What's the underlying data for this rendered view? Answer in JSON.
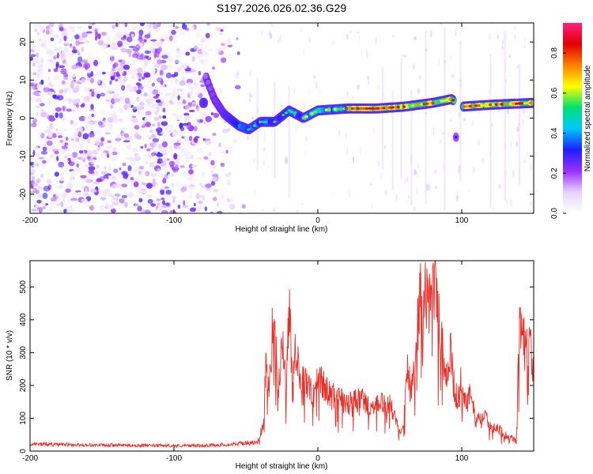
{
  "page_title": "S197.2026.026.02.36.G29",
  "chart_data": [
    {
      "type": "heatmap",
      "title": "S197.2026.026.02.36.G29",
      "xlabel": "Height of straight line (km)",
      "ylabel": "Frequency (Hz)",
      "xlim": [
        -200,
        150
      ],
      "ylim": [
        -25,
        25
      ],
      "xticks": [
        -200,
        -100,
        0,
        100
      ],
      "xtick_labels": [
        "-200",
        "-100",
        "0",
        "100"
      ],
      "yticks": [
        20,
        10,
        0,
        -10,
        -20
      ],
      "ytick_labels": [
        "20",
        "10",
        "0",
        "-10",
        "-20"
      ],
      "colorbar": {
        "label": "Normalized spectral amplitude",
        "range": [
          0,
          0.95
        ],
        "ticks": [
          0,
          0.2,
          0.4,
          0.6,
          0.8
        ],
        "tick_labels": [
          "0.0",
          "0.2",
          "0.4",
          "0.6",
          "0.8"
        ],
        "colormap": [
          "#ffffff",
          "#e6d2ff",
          "#9b30ff",
          "#1e1eff",
          "#00c8ff",
          "#00e070",
          "#ffff00",
          "#ff8000",
          "#e00000",
          "#ff2080"
        ]
      },
      "ridge": {
        "description_points": [
          {
            "x": -78,
            "y": 11
          },
          {
            "x": -72,
            "y": 5
          },
          {
            "x": -65,
            "y": 1
          },
          {
            "x": -55,
            "y": -2
          },
          {
            "x": -48,
            "y": -3
          },
          {
            "x": -40,
            "y": -1
          },
          {
            "x": -30,
            "y": -1
          },
          {
            "x": -20,
            "y": 2
          },
          {
            "x": -10,
            "y": 0
          },
          {
            "x": 0,
            "y": 2
          },
          {
            "x": 20,
            "y": 2.5
          },
          {
            "x": 40,
            "y": 2.5
          },
          {
            "x": 60,
            "y": 3
          },
          {
            "x": 80,
            "y": 4
          },
          {
            "x": 93,
            "y": 5
          },
          {
            "x": 100,
            "y": 3
          },
          {
            "x": 120,
            "y": 3.5
          },
          {
            "x": 150,
            "y": 4
          }
        ],
        "peak_amplitude": 0.95
      },
      "noise_region": {
        "x_from": -200,
        "x_to": -50
      }
    },
    {
      "type": "line",
      "xlabel": "Height of straight line (km)",
      "ylabel": "SNR (10 * v/v)",
      "xlim": [
        -200,
        150
      ],
      "ylim": [
        0,
        580
      ],
      "xticks": [
        -200,
        -100,
        0,
        100
      ],
      "xtick_labels": [
        "-200",
        "-100",
        "0",
        "100"
      ],
      "yticks": [
        0,
        100,
        200,
        300,
        400,
        500
      ],
      "ytick_labels": [
        "0",
        "100",
        "200",
        "300",
        "400",
        "500"
      ],
      "color": "#e8302a",
      "series": [
        {
          "x": [
            -200,
            -180,
            -160,
            -140,
            -120,
            -100,
            -80,
            -60,
            -50,
            -42,
            -38,
            -36,
            -34,
            -30,
            -28,
            -25,
            -22,
            -20,
            -18,
            -15,
            -12,
            -10,
            -8,
            -5,
            -2,
            0,
            5,
            10,
            15,
            20,
            25,
            30,
            35,
            40,
            45,
            50,
            55,
            58,
            60,
            62,
            65,
            68,
            70,
            72,
            75,
            78,
            80,
            82,
            85,
            88,
            90,
            92,
            95,
            98,
            100,
            103,
            106,
            110,
            115,
            120,
            125,
            130,
            135,
            138,
            140,
            142,
            145,
            148,
            150
          ],
          "values": [
            22,
            20,
            18,
            18,
            17,
            16,
            17,
            20,
            25,
            25,
            80,
            280,
            180,
            480,
            140,
            360,
            180,
            450,
            240,
            330,
            200,
            240,
            210,
            180,
            160,
            230,
            190,
            170,
            160,
            140,
            150,
            160,
            140,
            130,
            150,
            140,
            90,
            60,
            110,
            250,
            190,
            300,
            420,
            480,
            470,
            460,
            540,
            500,
            380,
            260,
            220,
            310,
            180,
            160,
            230,
            140,
            170,
            90,
            110,
            80,
            70,
            50,
            40,
            30,
            380,
            410,
            300,
            330,
            250
          ]
        }
      ]
    }
  ]
}
